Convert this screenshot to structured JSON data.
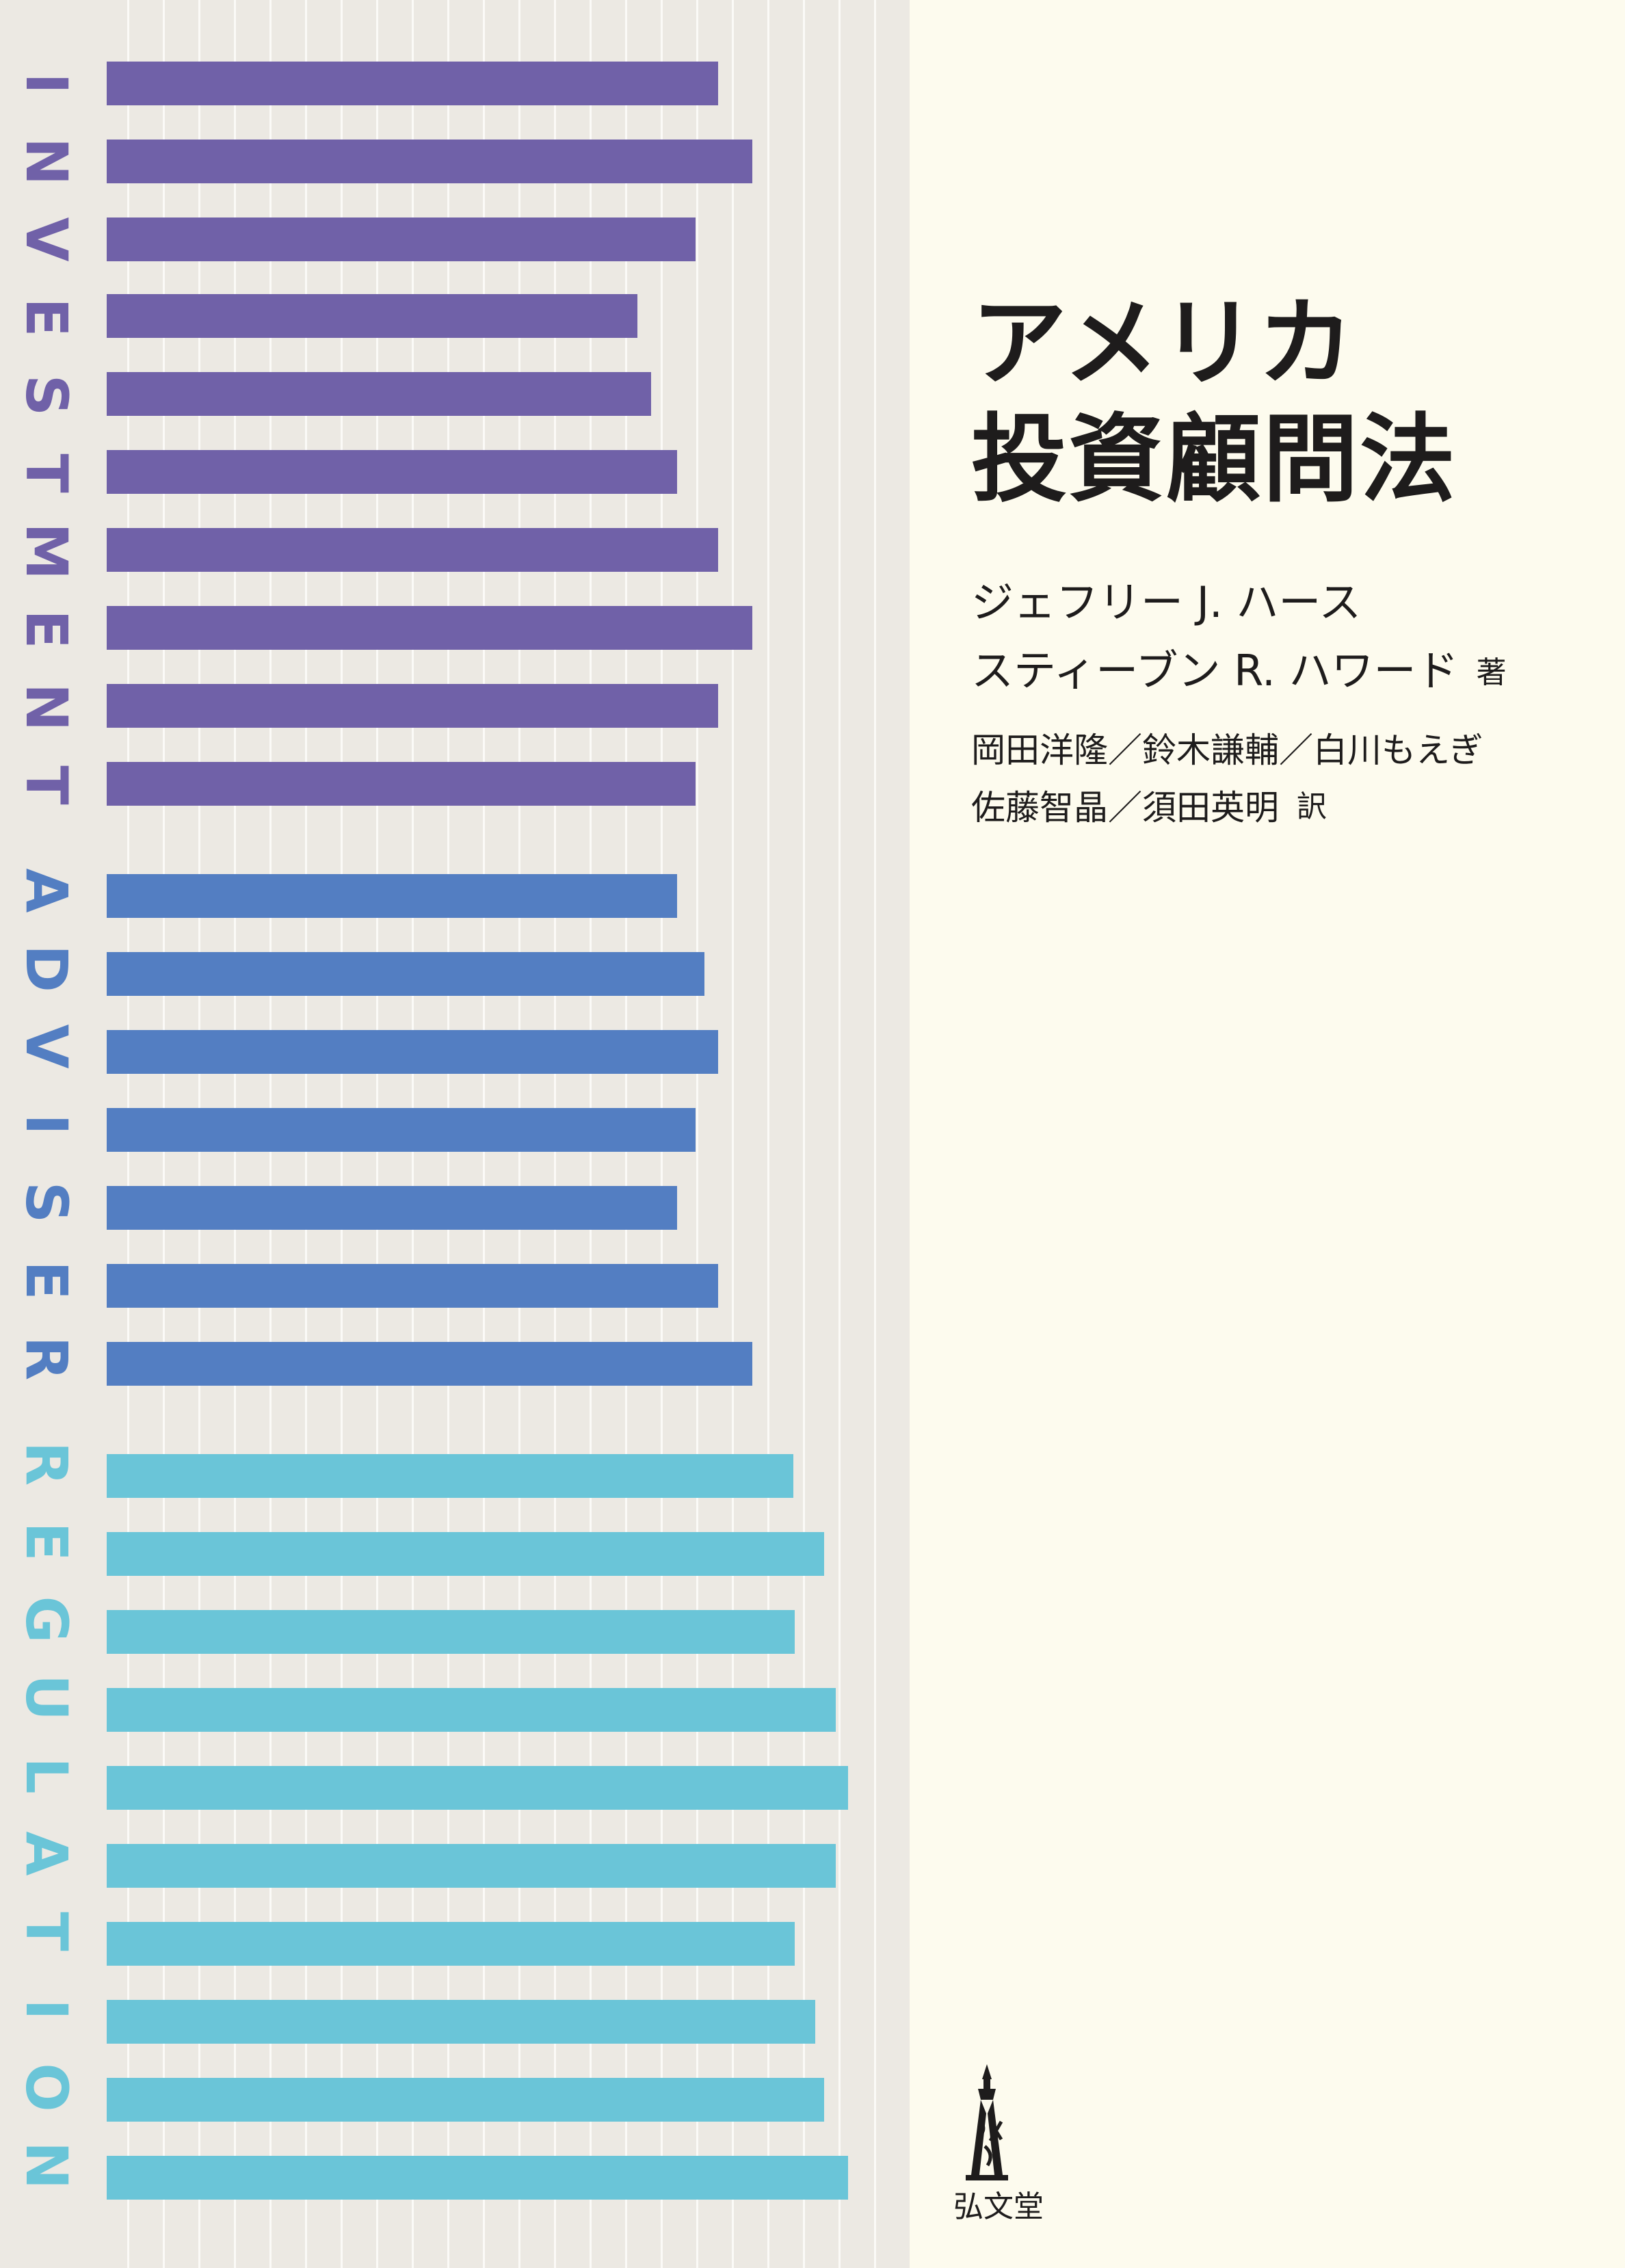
{
  "cover": {
    "title_line_1": "アメリカ",
    "title_line_2": "投資顧問法",
    "authors": {
      "line1": "ジェフリー J. ハース",
      "line2": "スティーブン R. ハワード",
      "role": "著"
    },
    "translators": {
      "line1": "岡田洋隆／鈴木謙輔／白川もえぎ",
      "line2": "佐藤智晶／須田英明",
      "role": "訳"
    },
    "publisher": "弘文堂",
    "spine_text": [
      "INVESTMENT",
      "ADVISER",
      "REGULATION"
    ],
    "colors": {
      "background": "#fdfbee",
      "panel": "#ece9e3",
      "purple": "#7061a8",
      "blue": "#537ec2",
      "cyan": "#6ac5d8",
      "text": "#1e1c1c"
    },
    "logo_icon": "koubundou-pagoda-icon"
  }
}
